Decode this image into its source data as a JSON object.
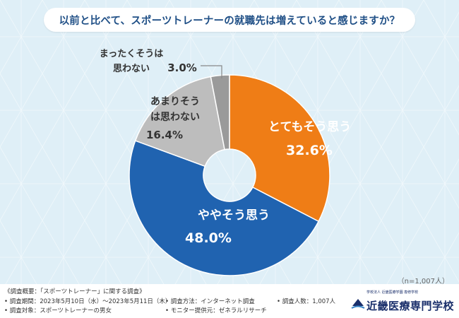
{
  "title": "以前と比べて、スポーツトレーナーの就職先は増えていると感じますか？",
  "sample_size": "（n=1,007人）",
  "colors": {
    "bg": "#dfeff7",
    "title_text": "#1f4f86",
    "orange": "#ef7d16",
    "blue": "#2063b0",
    "light_gray": "#bdbdbd",
    "dark_gray": "#9a9a9a"
  },
  "chart_data": {
    "type": "pie",
    "variant": "donut",
    "title": "以前と比べて、スポーツトレーナーの就職先は増えていると感じますか？",
    "slices": [
      {
        "label": "とてもそう思う",
        "value": 32.6,
        "value_text": "32.6%",
        "color": "#ef7d16"
      },
      {
        "label": "ややそう思う",
        "value": 48.0,
        "value_text": "48.0%",
        "color": "#2063b0"
      },
      {
        "label": "あまりそう\nは思わない",
        "value": 16.4,
        "value_text": "16.4%",
        "color": "#bdbdbd"
      },
      {
        "label": "まったくそうは\n思わない",
        "value": 3.0,
        "value_text": "3.0%",
        "color": "#9a9a9a"
      }
    ],
    "start": "12 o'clock",
    "direction": "clockwise"
  },
  "footer": {
    "overview": "《調査概要：「スポーツトレーナー」に関する調査》",
    "period": "• 調査期間：2023年5月10日（水）～2023年5月11日（木）",
    "target": "• 調査対象：スポーツトレーナーの男女",
    "method": "• 調査方法：インターネット調査",
    "provider": "• モニター提供元：ゼネラルリサーチ",
    "count": "• 調査人数：1,007人",
    "logo_sub": "学校法人 近畿医療学園 専修学校",
    "logo_main": "近畿医療専門学校"
  }
}
